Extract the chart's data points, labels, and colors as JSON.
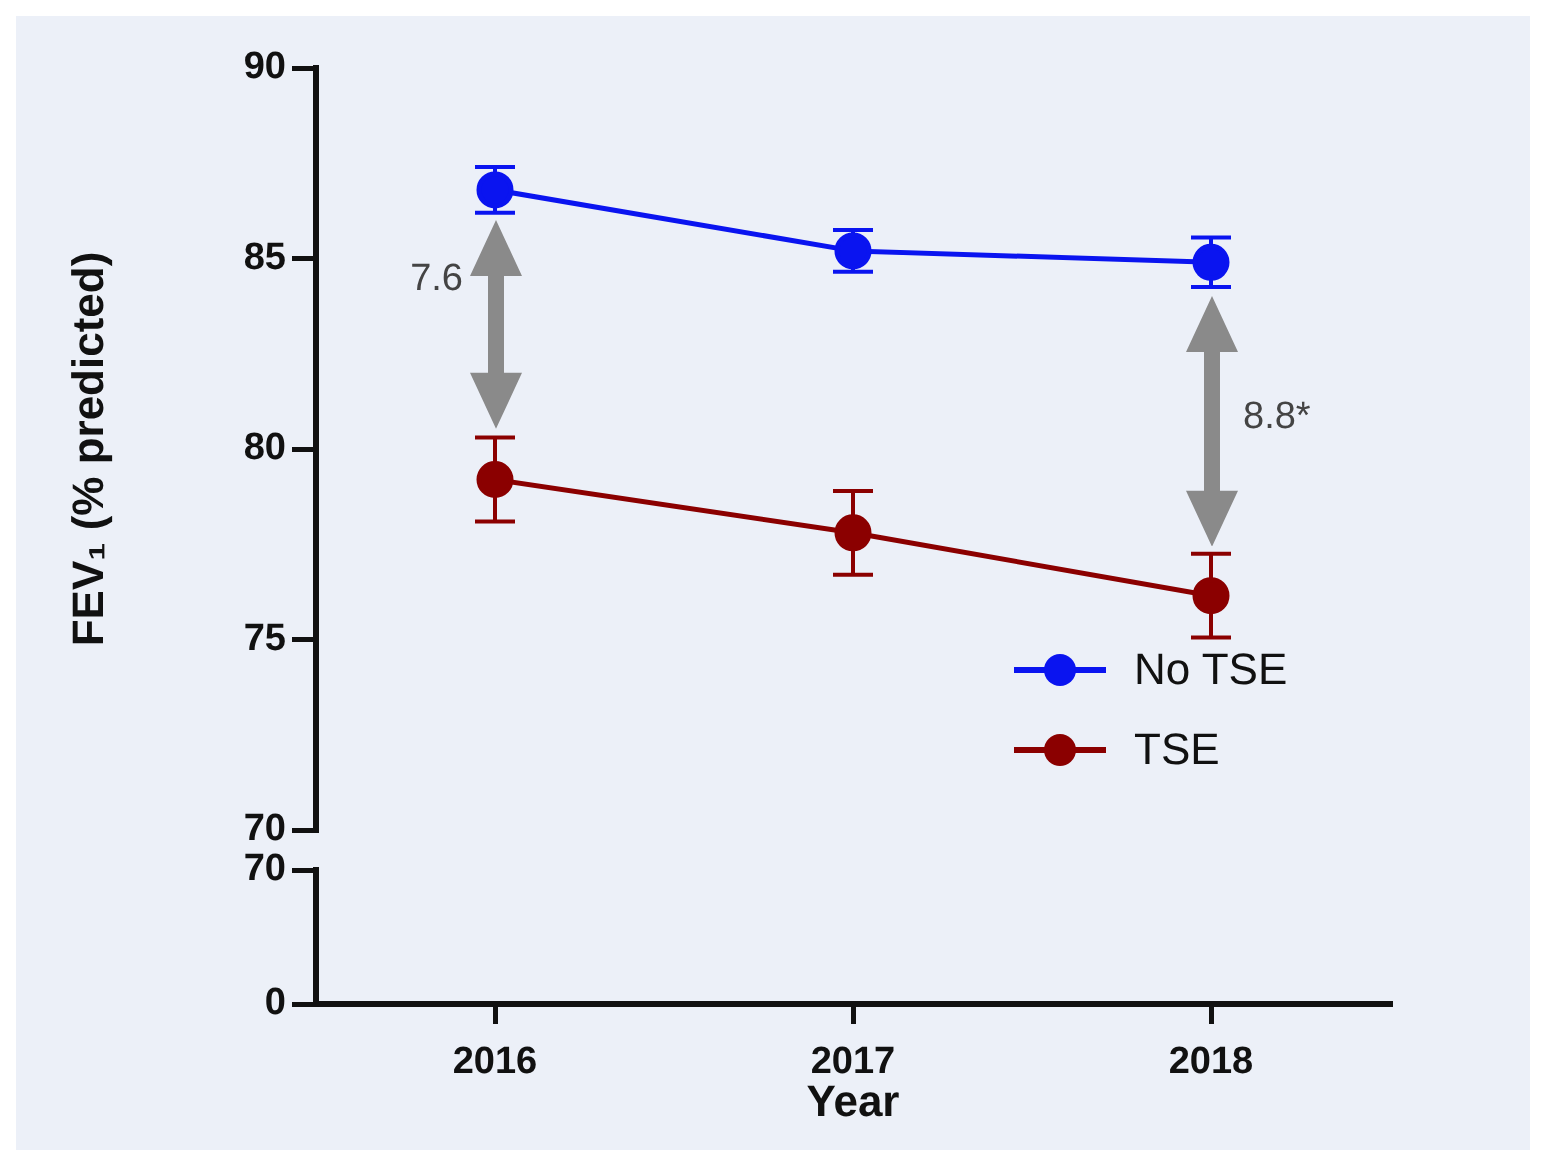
{
  "chart_data": [
    {
      "type": "line",
      "ylabel": "FEV₁ (% predicted)",
      "categories": [
        "2016",
        "2017",
        "2018"
      ],
      "series": [
        {
          "name": "No TSE",
          "color": "#0a14f0",
          "values": [
            86.8,
            85.2,
            84.9
          ],
          "errors": [
            0.6,
            0.55,
            0.65
          ]
        },
        {
          "name": "TSE",
          "color": "#8b0000",
          "values": [
            79.2,
            77.8,
            76.15
          ],
          "errors": [
            1.1,
            1.1,
            1.1
          ]
        }
      ],
      "ylim": [
        70,
        90
      ],
      "yticks": [
        70,
        75,
        80,
        85,
        90
      ],
      "annotations": [
        "7.6",
        "8.8*"
      ],
      "marker": "circle",
      "line_style": "solid",
      "grid": false,
      "legend": "bottom right",
      "tick_labels": "y"
    },
    {
      "type": "line",
      "xlabel": "Year",
      "categories": [
        "2016",
        "2017",
        "2018"
      ],
      "ylim": [
        0,
        70
      ],
      "yticks": [
        0,
        70
      ],
      "grid": false
    }
  ]
}
